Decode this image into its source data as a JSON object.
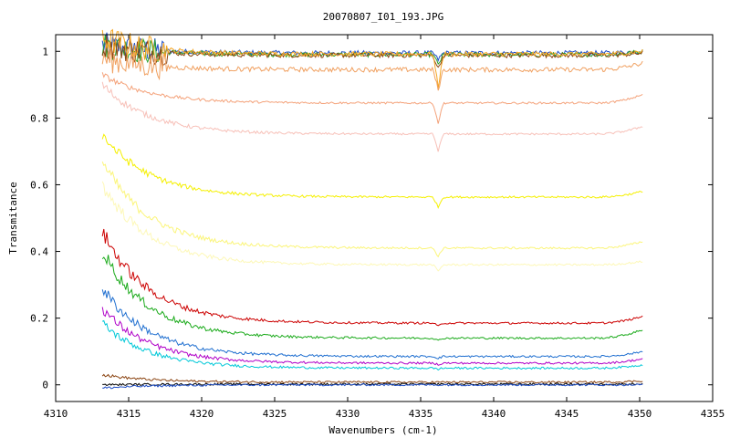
{
  "chart_data": {
    "type": "line",
    "title": "20070807_I01_193.JPG",
    "xlabel": "Wavenumbers (cm-1)",
    "ylabel": "Transmitance",
    "xlim": [
      4310,
      4355
    ],
    "ylim": [
      -0.05,
      1.05
    ],
    "xticks": [
      4310,
      4315,
      4320,
      4325,
      4330,
      4335,
      4340,
      4345,
      4350,
      4355
    ],
    "xtick_labels": [
      "4310",
      "4315",
      "4320",
      "4325",
      "4330",
      "4335",
      "4340",
      "4345",
      "4350",
      "4355"
    ],
    "yticks": [
      0,
      0.2,
      0.4,
      0.6,
      0.8,
      1
    ],
    "ytick_labels": [
      "0",
      "0.2",
      "0.4",
      "0.6",
      "0.8",
      "1"
    ],
    "grid": false,
    "legend": "none",
    "x_range_data": [
      4313.2,
      4350.2
    ],
    "dip_position": 4336.2,
    "series": [
      {
        "color": "#1f4fc8",
        "start": 1.02,
        "plateau": 0.995,
        "end": 1.0,
        "dip": 0.02
      },
      {
        "color": "#2ca02c",
        "start": 1.02,
        "plateau": 0.99,
        "end": 1.0,
        "dip": 0.03
      },
      {
        "color": "#8b4513",
        "start": 1.02,
        "plateau": 0.988,
        "end": 0.995,
        "dip": 0.04
      },
      {
        "color": "#f5a623",
        "start": 1.04,
        "plateau": 0.992,
        "end": 1.0,
        "dip": 0.1
      },
      {
        "color": "#f0a060",
        "start": 0.98,
        "plateau": 0.945,
        "end": 0.965,
        "dip": 0.06
      },
      {
        "color": "#f4a27a",
        "start": 0.93,
        "plateau": 0.845,
        "end": 0.87,
        "dip": 0.06
      },
      {
        "color": "#f7c0b8",
        "start": 0.9,
        "plateau": 0.752,
        "end": 0.775,
        "dip": 0.05
      },
      {
        "color": "#f5f000",
        "start": 0.75,
        "plateau": 0.563,
        "end": 0.58,
        "dip": 0.03
      },
      {
        "color": "#fbf57a",
        "start": 0.67,
        "plateau": 0.41,
        "end": 0.43,
        "dip": 0.025
      },
      {
        "color": "#fdf8b8",
        "start": 0.6,
        "plateau": 0.36,
        "end": 0.37,
        "dip": 0.02
      },
      {
        "color": "#cc0000",
        "start": 0.46,
        "plateau": 0.185,
        "end": 0.205,
        "dip": 0.01
      },
      {
        "color": "#1aaa1a",
        "start": 0.4,
        "plateau": 0.14,
        "end": 0.165,
        "dip": 0.008
      },
      {
        "color": "#1f6fd0",
        "start": 0.29,
        "plateau": 0.085,
        "end": 0.1,
        "dip": 0.005
      },
      {
        "color": "#b000c8",
        "start": 0.23,
        "plateau": 0.065,
        "end": 0.078,
        "dip": 0.004
      },
      {
        "color": "#00c8d8",
        "start": 0.185,
        "plateau": 0.05,
        "end": 0.06,
        "dip": 0.003
      },
      {
        "color": "#8b4513",
        "start": 0.03,
        "plateau": 0.008,
        "end": 0.012,
        "dip": 0.0
      },
      {
        "color": "#000000",
        "start": 0.0,
        "plateau": 0.002,
        "end": 0.003,
        "dip": 0.0
      },
      {
        "color": "#1f4fc8",
        "start": -0.01,
        "plateau": 0.0,
        "end": 0.0,
        "dip": 0.0
      }
    ]
  }
}
